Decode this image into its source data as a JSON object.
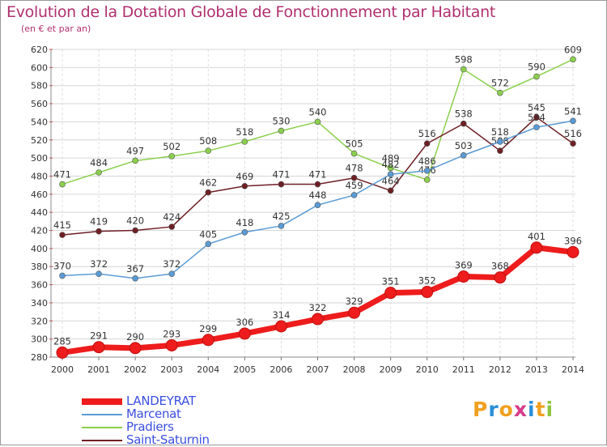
{
  "header": {
    "title": "Evolution de la Dotation Globale de Fonctionnement par Habitant",
    "subtitle": "(en € et par an)"
  },
  "logo": {
    "text": "Proxiti"
  },
  "chart_data": {
    "type": "line",
    "title": "Evolution de la Dotation Globale de Fonctionnement par Habitant",
    "subtitle": "(en € et par an)",
    "xlabel": "",
    "ylabel": "",
    "x": [
      2000,
      2001,
      2002,
      2003,
      2004,
      2005,
      2006,
      2007,
      2008,
      2009,
      2010,
      2011,
      2012,
      2013,
      2014
    ],
    "ylim": [
      280,
      620
    ],
    "yticks": [
      280,
      300,
      320,
      340,
      360,
      380,
      400,
      420,
      440,
      460,
      480,
      500,
      520,
      540,
      560,
      580,
      600,
      620
    ],
    "grid": true,
    "legend": "bottom-left",
    "series": [
      {
        "name": "Pradiers",
        "color": "#8ccf4e",
        "values": [
          471,
          484,
          497,
          502,
          508,
          518,
          530,
          540,
          505,
          489,
          476,
          598,
          572,
          590,
          609
        ]
      },
      {
        "name": "Saint-Saturnin",
        "color": "#6e1f24",
        "values": [
          415,
          419,
          420,
          424,
          462,
          469,
          471,
          471,
          478,
          464,
          516,
          538,
          508,
          545,
          516
        ]
      },
      {
        "name": "Marcenat",
        "color": "#5b9bd5",
        "values": [
          370,
          372,
          367,
          372,
          405,
          418,
          425,
          448,
          459,
          482,
          486,
          503,
          518,
          534,
          541
        ]
      },
      {
        "name": "LANDEYRAT",
        "color": "#ee1c1c",
        "values": [
          285,
          291,
          290,
          293,
          299,
          306,
          314,
          322,
          329,
          351,
          352,
          369,
          368,
          401,
          396
        ]
      }
    ],
    "legend_order": [
      "LANDEYRAT",
      "Marcenat",
      "Pradiers",
      "Saint-Saturnin"
    ]
  }
}
